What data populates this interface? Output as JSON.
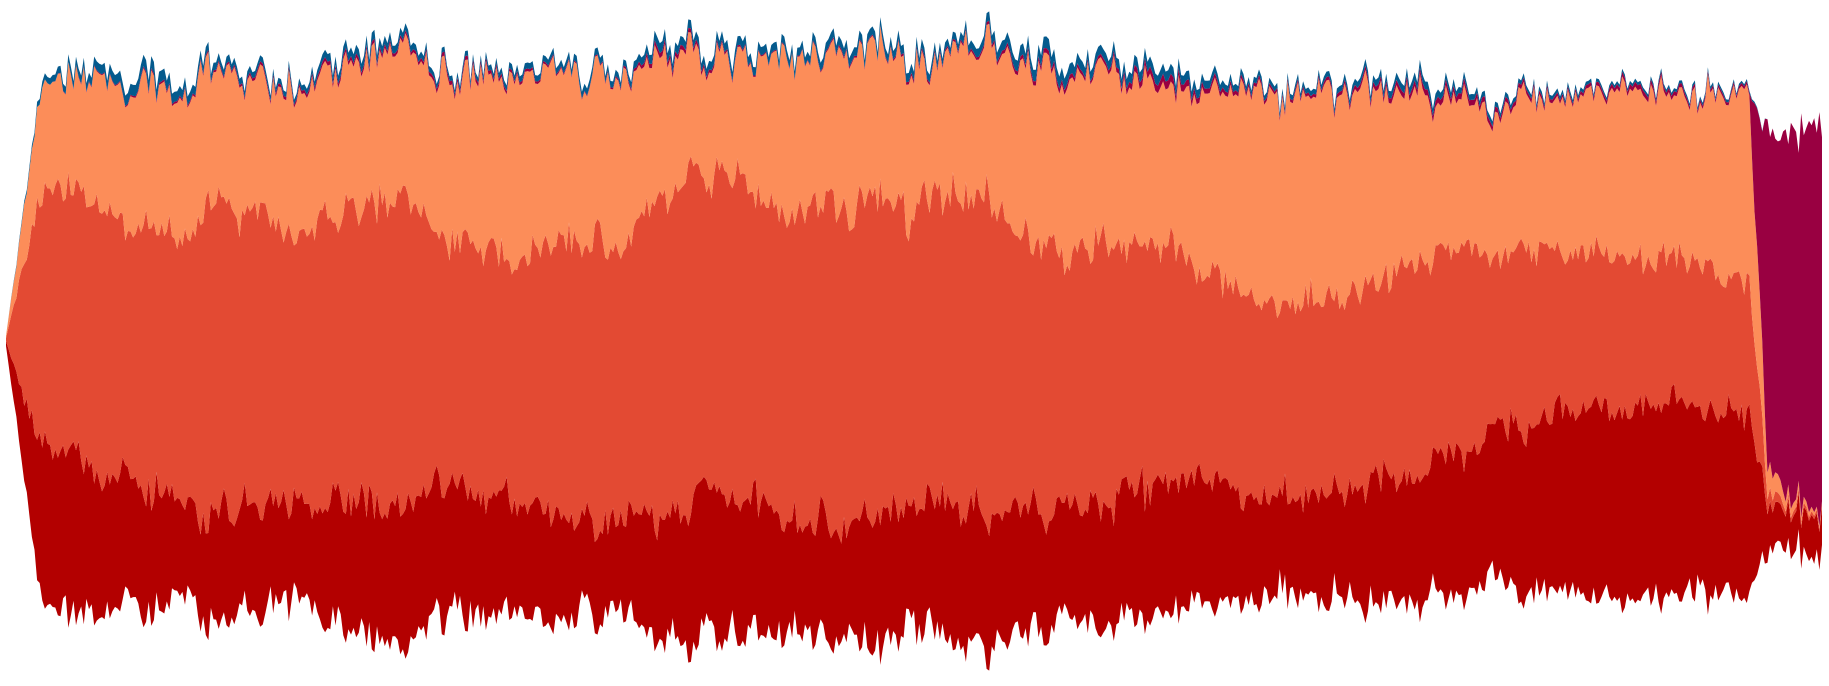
{
  "chart_data": {
    "type": "area",
    "stacked": true,
    "baseline": "wiggle",
    "title": "",
    "xlabel": "",
    "ylabel": "",
    "grid": false,
    "legend": "none",
    "x_range": [
      0,
      100
    ],
    "x": [
      0,
      2,
      4,
      6,
      8,
      10,
      12,
      14,
      16,
      18,
      20,
      22,
      24,
      26,
      28,
      30,
      32,
      34,
      36,
      38,
      40,
      42,
      44,
      46,
      48,
      50,
      52,
      54,
      56,
      58,
      60,
      62,
      64,
      66,
      68,
      70,
      72,
      74,
      76,
      78,
      80,
      82,
      84,
      86,
      88,
      90,
      92,
      94,
      96,
      97,
      98,
      100
    ],
    "series": [
      {
        "color": "#b30000",
        "values": [
          5,
          155,
          165,
          130,
          120,
          90,
          105,
          100,
          95,
          120,
          130,
          145,
          140,
          120,
          110,
          105,
          95,
          100,
          120,
          140,
          135,
          125,
          110,
          115,
          120,
          125,
          140,
          135,
          120,
          115,
          120,
          130,
          140,
          125,
          110,
          95,
          100,
          115,
          130,
          135,
          140,
          160,
          175,
          185,
          190,
          195,
          200,
          190,
          175,
          45,
          40,
          40
        ]
      },
      {
        "color": "#e34a33",
        "values": [
          3,
          260,
          260,
          270,
          265,
          280,
          300,
          285,
          270,
          275,
          290,
          305,
          260,
          230,
          240,
          250,
          275,
          290,
          300,
          315,
          315,
          305,
          305,
          315,
          320,
          300,
          300,
          300,
          280,
          250,
          250,
          245,
          235,
          210,
          200,
          195,
          195,
          200,
          205,
          215,
          210,
          180,
          170,
          160,
          150,
          145,
          140,
          140,
          140,
          15,
          5,
          3
        ]
      },
      {
        "color": "#fc8d59",
        "values": [
          2,
          105,
          115,
          130,
          140,
          150,
          130,
          135,
          145,
          140,
          145,
          140,
          155,
          160,
          170,
          175,
          170,
          165,
          140,
          115,
          120,
          145,
          150,
          150,
          150,
          150,
          140,
          150,
          165,
          180,
          175,
          165,
          160,
          185,
          205,
          210,
          210,
          200,
          185,
          160,
          150,
          145,
          150,
          155,
          165,
          170,
          170,
          170,
          175,
          30,
          10,
          2
        ]
      },
      {
        "color": "#990041",
        "values": [
          0,
          0,
          1,
          1,
          2,
          2,
          2,
          3,
          3,
          4,
          4,
          3,
          4,
          4,
          3,
          2,
          1,
          2,
          5,
          4,
          2,
          1,
          1,
          2,
          1,
          3,
          2,
          3,
          4,
          5,
          3,
          6,
          8,
          5,
          4,
          3,
          3,
          4,
          5,
          6,
          6,
          5,
          4,
          3,
          4,
          5,
          4,
          3,
          3,
          360,
          360,
          360
        ]
      },
      {
        "color": "#045a8d",
        "values": [
          0,
          6,
          8,
          10,
          12,
          9,
          7,
          6,
          5,
          8,
          9,
          7,
          5,
          5,
          6,
          6,
          7,
          6,
          10,
          8,
          9,
          8,
          8,
          9,
          8,
          9,
          7,
          9,
          11,
          12,
          9,
          10,
          10,
          8,
          6,
          5,
          5,
          6,
          7,
          8,
          6,
          5,
          4,
          4,
          3,
          3,
          3,
          3,
          2,
          0,
          0,
          0
        ]
      }
    ]
  }
}
